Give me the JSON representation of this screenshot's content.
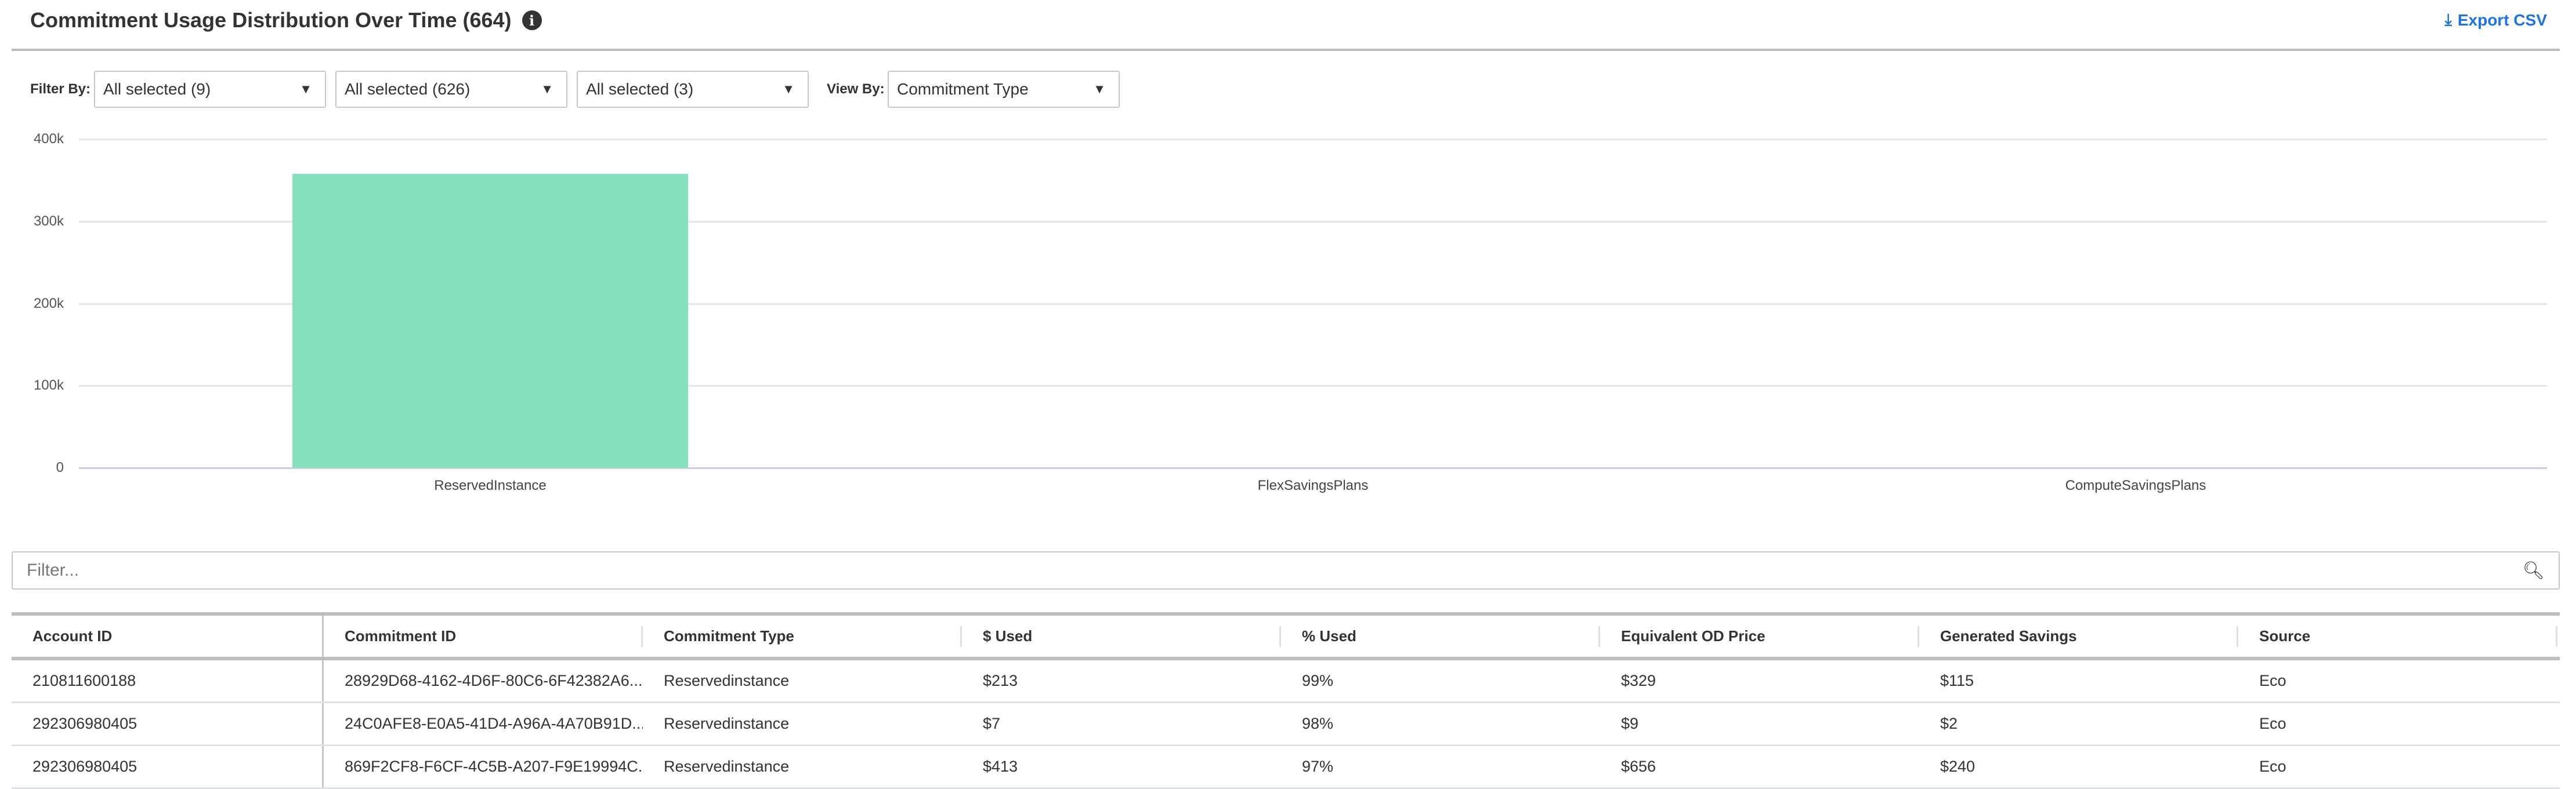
{
  "header": {
    "title": "Commitment Usage Distribution Over Time (664)",
    "info_icon": "info-icon",
    "export_label": "Export CSV",
    "export_icon": "download-icon",
    "accent": "#1a73e8"
  },
  "filters": {
    "filter_by_label": "Filter By:",
    "selects": [
      "All selected (9)",
      "All selected (626)",
      "All selected (3)"
    ],
    "view_by_label": "View By:",
    "view_by_value": "Commitment Type"
  },
  "chart_data": {
    "type": "bar",
    "categories": [
      "ReservedInstance",
      "FlexSavingsPlans",
      "ComputeSavingsPlans"
    ],
    "values": [
      358000,
      0,
      0
    ],
    "yticks": [
      "0",
      "100k",
      "200k",
      "300k",
      "400k"
    ],
    "ylim": [
      0,
      400000
    ],
    "grid": true,
    "color": "#84e1bc",
    "title": "",
    "xlabel": "",
    "ylabel": ""
  },
  "table_filter": {
    "placeholder": "Filter...",
    "icon": "search-icon"
  },
  "table": {
    "columns": [
      "Account ID",
      "Commitment ID",
      "Commitment Type",
      "$ Used",
      "% Used",
      "Equivalent OD Price",
      "Generated Savings",
      "Source"
    ],
    "rows": [
      [
        "210811600188",
        "28929D68-4162-4D6F-80C6-6F42382A6...",
        "Reservedinstance",
        "$213",
        "99%",
        "$329",
        "$115",
        "Eco"
      ],
      [
        "292306980405",
        "24C0AFE8-E0A5-41D4-A96A-4A70B91D...",
        "Reservedinstance",
        "$7",
        "98%",
        "$9",
        "$2",
        "Eco"
      ],
      [
        "292306980405",
        "869F2CF8-F6CF-4C5B-A207-F9E19994C...",
        "Reservedinstance",
        "$413",
        "97%",
        "$656",
        "$240",
        "Eco"
      ]
    ]
  }
}
